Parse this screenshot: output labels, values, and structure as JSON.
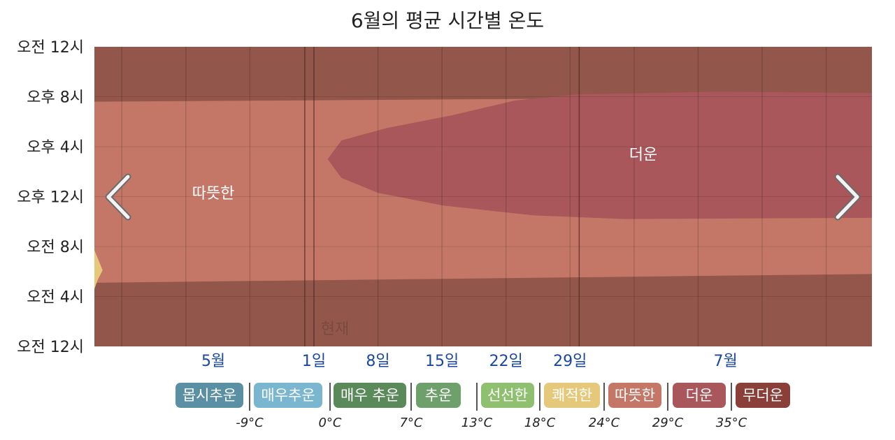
{
  "title": "6월의 평균 시간별 온도",
  "chart_data": {
    "type": "heatmap",
    "title": "6월의 평균 시간별 온도",
    "y_ticks": [
      "오전 12시",
      "오후 8시",
      "오후 4시",
      "오후 12시",
      "오전 8시",
      "오전 4시",
      "오전 12시"
    ],
    "x_ticks": [
      {
        "label": "5월",
        "day": -10
      },
      {
        "label": "1일",
        "day": 1
      },
      {
        "label": "8일",
        "day": 8
      },
      {
        "label": "15일",
        "day": 15
      },
      {
        "label": "22일",
        "day": 22
      },
      {
        "label": "29일",
        "day": 29
      },
      {
        "label": "7월",
        "day": 46
      }
    ],
    "x_range_days": [
      -23,
      62
    ],
    "month_markers_day": [
      0,
      30
    ],
    "now_marker_day": 1,
    "now_label": "현재",
    "regions": [
      {
        "label": "따뜻한",
        "band": "따뜻한",
        "label_day": -10,
        "label_hour": 12.3
      },
      {
        "label": "더운",
        "band": "더운",
        "label_day": 37,
        "label_hour": 15.4
      }
    ],
    "legend": [
      {
        "label": "몹시추운",
        "color": "#5b8fa3"
      },
      {
        "label": "매우추운",
        "color": "#7ab6cf"
      },
      {
        "label": "매우 추운",
        "color": "#5a8a5a"
      },
      {
        "label": "추운",
        "color": "#6da06a"
      },
      {
        "label": "선선한",
        "color": "#8ec070"
      },
      {
        "label": "쾌적한",
        "color": "#e6c87a"
      },
      {
        "label": "따뜻한",
        "color": "#c47766"
      },
      {
        "label": "더운",
        "color": "#a9575a"
      },
      {
        "label": "무더운",
        "color": "#8a3f38"
      }
    ],
    "thresholds": [
      "-9°C",
      "0°C",
      "7°C",
      "13°C",
      "18°C",
      "24°C",
      "29°C",
      "35°C"
    ]
  },
  "nav": {
    "prev_icon": "chevron-left-icon",
    "next_icon": "chevron-right-icon"
  }
}
